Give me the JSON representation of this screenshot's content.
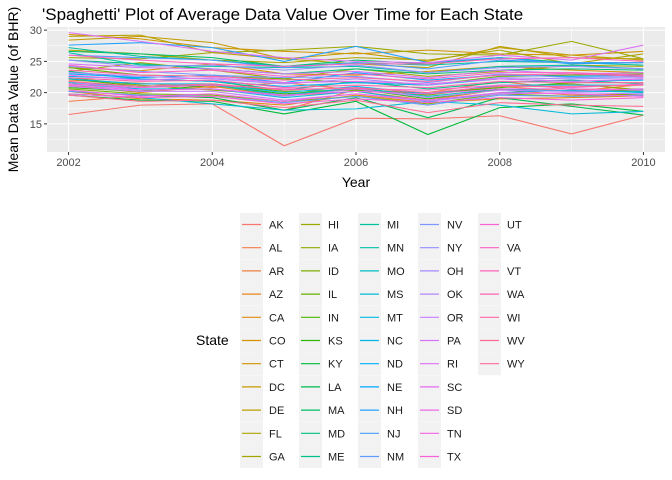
{
  "chart_data": {
    "type": "line",
    "title": "'Spaghetti' Plot of Average Data Value Over Time for Each State",
    "xlabel": "Year",
    "ylabel": "Mean Data Value (of BHR)",
    "xlim": [
      2001.7,
      2010.3
    ],
    "ylim": [
      10.5,
      30.5
    ],
    "x_ticks": [
      2002,
      2004,
      2006,
      2008,
      2010
    ],
    "x_tick_labels": [
      "2002",
      "2004",
      "2006",
      "2008",
      "2010"
    ],
    "y_ticks": [
      15,
      20,
      25,
      30
    ],
    "y_tick_labels": [
      "15",
      "20",
      "25",
      "30"
    ],
    "grid": true,
    "background": "#ebebeb",
    "legend_position": "bottom",
    "legend": {
      "title": "State",
      "entries": [
        "AK",
        "AL",
        "AR",
        "AZ",
        "CA",
        "CO",
        "CT",
        "DC",
        "DE",
        "FL",
        "GA",
        "HI",
        "IA",
        "ID",
        "IL",
        "IN",
        "KS",
        "KY",
        "LA",
        "MA",
        "MD",
        "ME",
        "MI",
        "MN",
        "MO",
        "MS",
        "MT",
        "NC",
        "ND",
        "NE",
        "NH",
        "NJ",
        "NM",
        "NV",
        "NY",
        "OH",
        "OK",
        "OR",
        "PA",
        "RI",
        "SC",
        "SD",
        "TN",
        "TX",
        "UT",
        "VA",
        "VT",
        "WA",
        "WI",
        "WV",
        "WY"
      ]
    },
    "x": [
      2002,
      2003,
      2004,
      2005,
      2006,
      2007,
      2008,
      2009,
      2010
    ],
    "series": [
      {
        "name": "AK",
        "color": "#F8766D",
        "values": [
          16.5,
          18.0,
          18.2,
          11.5,
          15.9,
          15.8,
          16.3,
          13.4,
          16.4
        ]
      },
      {
        "name": "AL",
        "color": "#F47D4A",
        "values": [
          18.6,
          19.5,
          19.2,
          17.2,
          20.5,
          19.8,
          21.0,
          20.2,
          21.3
        ]
      },
      {
        "name": "AR",
        "color": "#EE8043",
        "values": [
          22.0,
          21.5,
          20.8,
          21.6,
          20.4,
          20.0,
          21.8,
          20.5,
          20.6
        ]
      },
      {
        "name": "AZ",
        "color": "#E7861B",
        "values": [
          21.2,
          20.0,
          21.0,
          19.5,
          20.2,
          18.8,
          20.5,
          19.6,
          19.8
        ]
      },
      {
        "name": "CA",
        "color": "#DF8B0D",
        "values": [
          20.2,
          19.0,
          18.8,
          18.0,
          19.6,
          18.4,
          19.0,
          19.2,
          19.5
        ]
      },
      {
        "name": "CO",
        "color": "#D89000",
        "values": [
          24.0,
          23.5,
          24.6,
          23.0,
          22.8,
          23.4,
          24.2,
          23.6,
          23.2
        ]
      },
      {
        "name": "CT",
        "color": "#CF9400",
        "values": [
          29.3,
          28.6,
          27.2,
          26.6,
          26.2,
          26.8,
          26.2,
          26.0,
          26.6
        ]
      },
      {
        "name": "DC",
        "color": "#C49A00",
        "values": [
          28.4,
          29.0,
          28.0,
          25.4,
          26.4,
          25.0,
          27.2,
          26.0,
          25.2
        ]
      },
      {
        "name": "DE",
        "color": "#B9A000",
        "values": [
          29.0,
          29.2,
          26.4,
          25.4,
          24.6,
          24.0,
          27.4,
          25.6,
          25.4
        ]
      },
      {
        "name": "FL",
        "color": "#ADA400",
        "values": [
          26.8,
          26.2,
          25.2,
          24.8,
          25.6,
          25.2,
          26.8,
          24.6,
          26.2
        ]
      },
      {
        "name": "GA",
        "color": "#A3A500",
        "values": [
          23.4,
          24.8,
          23.6,
          22.2,
          23.8,
          22.6,
          23.4,
          24.4,
          24.2
        ]
      },
      {
        "name": "HI",
        "color": "#9BA800",
        "values": [
          25.6,
          25.4,
          26.4,
          26.8,
          27.4,
          26.2,
          26.0,
          28.2,
          25.4
        ]
      },
      {
        "name": "IA",
        "color": "#8FAA00",
        "values": [
          22.4,
          21.2,
          20.4,
          19.6,
          20.6,
          19.6,
          21.0,
          21.4,
          20.4
        ]
      },
      {
        "name": "ID",
        "color": "#7CAE00",
        "values": [
          20.6,
          19.8,
          19.6,
          18.6,
          19.4,
          18.2,
          19.8,
          19.4,
          19.8
        ]
      },
      {
        "name": "IL",
        "color": "#65B200",
        "values": [
          24.0,
          22.8,
          22.6,
          22.2,
          21.6,
          21.2,
          22.6,
          22.8,
          23.0
        ]
      },
      {
        "name": "IN",
        "color": "#4CB600",
        "values": [
          22.2,
          21.0,
          21.4,
          20.2,
          20.4,
          19.8,
          20.8,
          21.6,
          21.6
        ]
      },
      {
        "name": "KS",
        "color": "#2EB700",
        "values": [
          20.8,
          20.2,
          21.2,
          19.8,
          20.6,
          19.0,
          20.6,
          20.2,
          20.4
        ]
      },
      {
        "name": "KY",
        "color": "#00BA38",
        "values": [
          19.6,
          18.8,
          18.6,
          16.6,
          18.6,
          13.3,
          17.6,
          18.2,
          17.0
        ]
      },
      {
        "name": "LA",
        "color": "#00BB4E",
        "values": [
          20.2,
          19.6,
          19.2,
          17.2,
          19.2,
          16.0,
          19.2,
          17.8,
          16.4
        ]
      },
      {
        "name": "MA",
        "color": "#00BE67",
        "values": [
          26.6,
          26.2,
          25.6,
          24.2,
          25.2,
          24.6,
          25.6,
          24.8,
          24.8
        ]
      },
      {
        "name": "MD",
        "color": "#00BF7D",
        "values": [
          25.2,
          24.6,
          23.8,
          23.0,
          23.8,
          23.0,
          23.6,
          23.8,
          23.6
        ]
      },
      {
        "name": "ME",
        "color": "#00C08B",
        "values": [
          23.4,
          22.2,
          21.8,
          20.4,
          21.8,
          20.6,
          21.6,
          22.0,
          21.4
        ]
      },
      {
        "name": "MI",
        "color": "#00C19A",
        "values": [
          27.2,
          25.8,
          25.2,
          24.2,
          24.8,
          24.4,
          25.0,
          24.8,
          24.4
        ]
      },
      {
        "name": "MN",
        "color": "#00C1A9",
        "values": [
          26.4,
          24.4,
          24.2,
          24.0,
          24.2,
          23.2,
          24.2,
          24.4,
          23.8
        ]
      },
      {
        "name": "MO",
        "color": "#00BFC4",
        "values": [
          21.6,
          21.0,
          21.2,
          19.6,
          20.8,
          19.4,
          20.6,
          20.2,
          20.2
        ]
      },
      {
        "name": "MS",
        "color": "#00BCD8",
        "values": [
          19.8,
          19.2,
          18.2,
          17.2,
          17.4,
          18.6,
          18.0,
          16.6,
          17.0
        ]
      },
      {
        "name": "MT",
        "color": "#00BAE0",
        "values": [
          21.4,
          20.6,
          20.6,
          19.2,
          20.2,
          18.6,
          20.0,
          20.4,
          20.0
        ]
      },
      {
        "name": "NC",
        "color": "#00B6EB",
        "values": [
          22.2,
          21.4,
          21.4,
          20.0,
          21.0,
          19.8,
          21.2,
          21.2,
          21.2
        ]
      },
      {
        "name": "ND",
        "color": "#00B0F6",
        "values": [
          22.6,
          22.2,
          21.8,
          21.0,
          21.6,
          21.2,
          22.2,
          21.8,
          22.0
        ]
      },
      {
        "name": "NE",
        "color": "#00A9FF",
        "values": [
          23.0,
          22.4,
          22.8,
          21.6,
          23.2,
          22.0,
          22.8,
          22.6,
          22.8
        ]
      },
      {
        "name": "NH",
        "color": "#25A2FF",
        "values": [
          27.6,
          28.0,
          27.2,
          25.0,
          27.4,
          24.8,
          25.6,
          24.6,
          24.8
        ]
      },
      {
        "name": "NJ",
        "color": "#4B9DFF",
        "values": [
          26.0,
          25.6,
          25.2,
          24.0,
          24.8,
          23.8,
          25.2,
          24.8,
          24.8
        ]
      },
      {
        "name": "NM",
        "color": "#619CFF",
        "values": [
          20.2,
          19.6,
          19.4,
          18.4,
          19.4,
          18.0,
          19.6,
          19.4,
          19.6
        ]
      },
      {
        "name": "NV",
        "color": "#7E97FF",
        "values": [
          24.2,
          23.4,
          22.8,
          22.4,
          22.6,
          21.6,
          23.0,
          22.4,
          22.6
        ]
      },
      {
        "name": "NY",
        "color": "#938EFF",
        "values": [
          25.2,
          24.2,
          24.4,
          23.6,
          24.4,
          23.2,
          24.0,
          24.2,
          23.8
        ]
      },
      {
        "name": "OH",
        "color": "#A58AFF",
        "values": [
          23.2,
          22.6,
          22.2,
          21.4,
          22.2,
          21.2,
          22.4,
          22.2,
          22.4
        ]
      },
      {
        "name": "OK",
        "color": "#B385FF",
        "values": [
          21.8,
          20.4,
          20.6,
          19.4,
          20.6,
          19.2,
          20.4,
          20.2,
          20.6
        ]
      },
      {
        "name": "OR",
        "color": "#C77CFF",
        "values": [
          21.0,
          20.2,
          20.2,
          18.8,
          19.8,
          18.6,
          19.8,
          20.0,
          19.8
        ]
      },
      {
        "name": "PA",
        "color": "#D474F9",
        "values": [
          24.6,
          24.0,
          23.8,
          23.0,
          23.4,
          22.4,
          23.6,
          23.0,
          23.2
        ]
      },
      {
        "name": "RI",
        "color": "#DF70F8",
        "values": [
          29.6,
          28.2,
          26.6,
          25.6,
          25.0,
          24.8,
          26.0,
          25.2,
          27.6
        ]
      },
      {
        "name": "SC",
        "color": "#E76BF3",
        "values": [
          22.8,
          22.0,
          22.4,
          21.6,
          21.8,
          21.4,
          22.2,
          21.8,
          22.2
        ]
      },
      {
        "name": "SD",
        "color": "#EE67E8",
        "values": [
          21.2,
          20.4,
          20.6,
          19.6,
          20.2,
          19.8,
          20.6,
          20.6,
          20.4
        ]
      },
      {
        "name": "TN",
        "color": "#F564E3",
        "values": [
          20.4,
          19.4,
          19.8,
          18.6,
          19.8,
          18.8,
          20.0,
          19.8,
          19.4
        ]
      },
      {
        "name": "TX",
        "color": "#F961D9",
        "values": [
          19.8,
          19.2,
          19.4,
          18.2,
          19.0,
          18.4,
          19.2,
          18.8,
          19.2
        ]
      },
      {
        "name": "UT",
        "color": "#FA62D0",
        "values": [
          21.4,
          20.8,
          21.2,
          20.6,
          20.6,
          20.4,
          21.2,
          20.8,
          21.4
        ]
      },
      {
        "name": "VA",
        "color": "#FD61C6",
        "values": [
          24.4,
          23.2,
          23.6,
          22.6,
          23.0,
          22.2,
          23.2,
          23.2,
          22.8
        ]
      },
      {
        "name": "VT",
        "color": "#FF62BC",
        "values": [
          26.0,
          25.2,
          24.6,
          24.2,
          24.6,
          24.6,
          25.4,
          25.6,
          25.0
        ]
      },
      {
        "name": "WA",
        "color": "#FF64B0",
        "values": [
          22.4,
          21.8,
          22.0,
          20.8,
          21.2,
          20.8,
          21.8,
          21.6,
          21.6
        ]
      },
      {
        "name": "WI",
        "color": "#FF66A8",
        "values": [
          23.6,
          22.8,
          22.6,
          22.0,
          22.4,
          21.8,
          22.8,
          23.0,
          22.6
        ]
      },
      {
        "name": "WV",
        "color": "#FF6C91",
        "values": [
          19.6,
          18.6,
          18.8,
          17.6,
          18.8,
          16.8,
          18.4,
          18.0,
          17.8
        ]
      },
      {
        "name": "WY",
        "color": "#FF6A98",
        "values": [
          21.8,
          21.0,
          21.4,
          20.4,
          20.8,
          20.0,
          21.0,
          21.0,
          21.2
        ]
      }
    ]
  }
}
